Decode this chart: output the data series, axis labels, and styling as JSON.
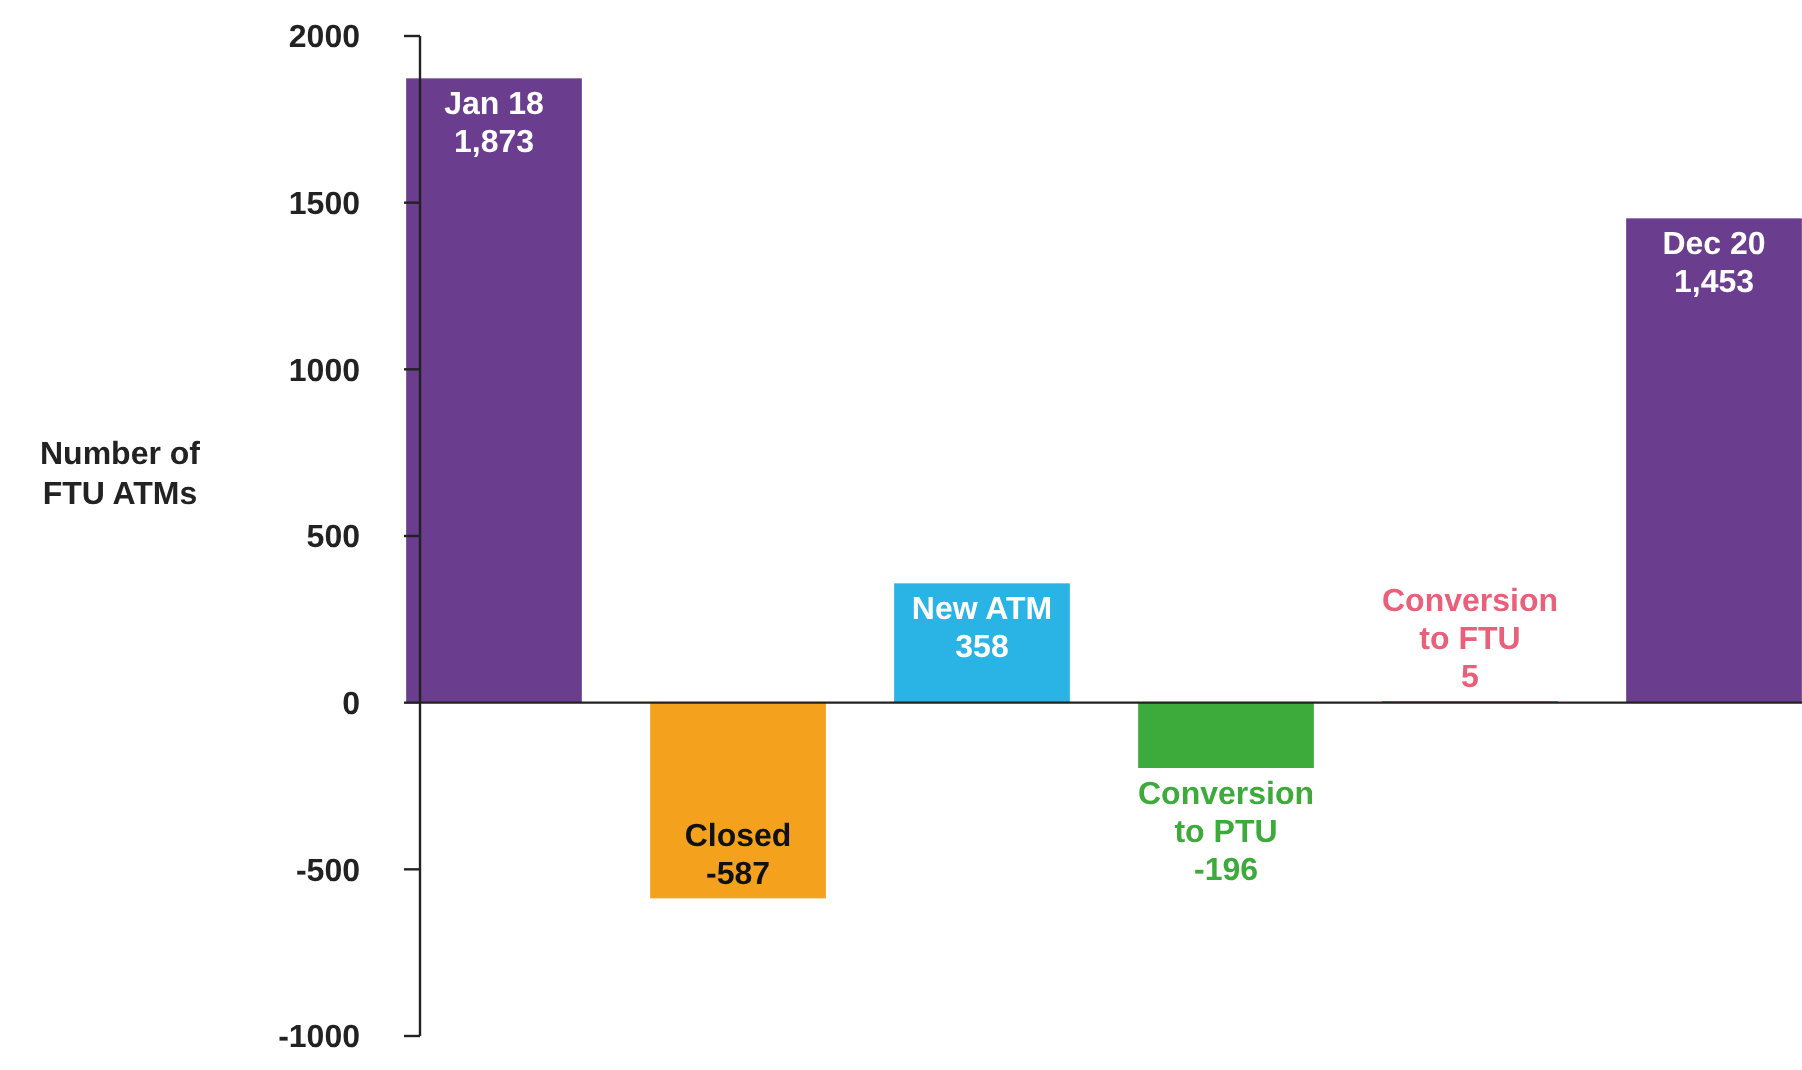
{
  "chart_data": {
    "type": "bar",
    "ylabel": "Number of FTU ATMs",
    "categories": [
      "Jan 18",
      "Closed",
      "New ATM",
      "Conversion to PTU",
      "Conversion to FTU",
      "Dec 20"
    ],
    "values": [
      1873,
      -587,
      358,
      -196,
      5,
      1453
    ],
    "value_labels": [
      "1,873",
      "-587",
      "358",
      "-196",
      "5",
      "1,453"
    ],
    "colors": [
      "#6a3d8f",
      "#f4a11d",
      "#2ab4e6",
      "#3dab3b",
      "#e8607a",
      "#6a3d8f"
    ],
    "ylim": [
      -1000,
      2000
    ],
    "yticks": [
      -1000,
      -500,
      0,
      500,
      1000,
      1500,
      2000
    ],
    "grid": false
  }
}
